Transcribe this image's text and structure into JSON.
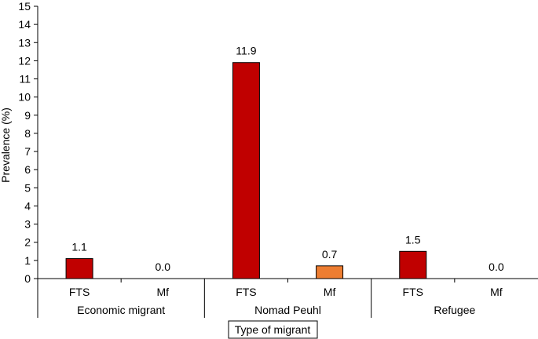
{
  "chart_data": {
    "type": "bar",
    "ylabel": "Prevalence (%)",
    "xlabel": "Type of migrant",
    "ylim": [
      0,
      15
    ],
    "yticks": [
      0,
      1,
      2,
      3,
      4,
      5,
      6,
      7,
      8,
      9,
      10,
      11,
      12,
      13,
      14,
      15
    ],
    "groups": [
      "Economic migrant",
      "Nomad Peuhl",
      "Refugee"
    ],
    "subcategories": [
      "FTS",
      "Mf"
    ],
    "values": [
      [
        1.1,
        0.0
      ],
      [
        11.9,
        0.7
      ],
      [
        1.5,
        0.0
      ]
    ],
    "value_labels": [
      [
        "1.1",
        "0.0"
      ],
      [
        "11.9",
        "0.7"
      ],
      [
        "1.5",
        "0.0"
      ]
    ],
    "grid": false,
    "colors": {
      "FTS": "#c00000",
      "Mf": "#ed7d31",
      "outline": "#000000"
    }
  }
}
